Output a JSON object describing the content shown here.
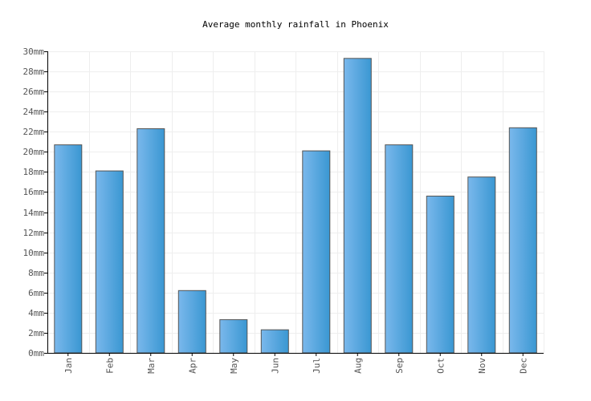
{
  "chart_data": {
    "type": "bar",
    "title": "Average monthly rainfall in Phoenix",
    "xlabel": "",
    "ylabel": "",
    "unit": "mm",
    "categories": [
      "Jan",
      "Feb",
      "Mar",
      "Apr",
      "May",
      "Jun",
      "Jul",
      "Aug",
      "Sep",
      "Oct",
      "Nov",
      "Dec"
    ],
    "values": [
      20.7,
      18.1,
      22.3,
      6.2,
      3.3,
      2.3,
      20.1,
      29.3,
      20.7,
      15.6,
      17.5,
      22.4
    ],
    "ylim": [
      0,
      30
    ],
    "yticks": [
      0,
      2,
      4,
      6,
      8,
      10,
      12,
      14,
      16,
      18,
      20,
      22,
      24,
      26,
      28,
      30
    ],
    "ytick_labels": [
      "0mm",
      "2mm",
      "4mm",
      "6mm",
      "8mm",
      "10mm",
      "12mm",
      "14mm",
      "16mm",
      "18mm",
      "20mm",
      "22mm",
      "24mm",
      "26mm",
      "28mm",
      "30mm"
    ],
    "grid": true,
    "colors": {
      "bar_light": "#7ab8ec",
      "bar_dark": "#3a97d2",
      "bar_stroke": "#555555",
      "grid": "#eeeeee",
      "axis": "#000000",
      "tick_text": "#555555"
    }
  }
}
